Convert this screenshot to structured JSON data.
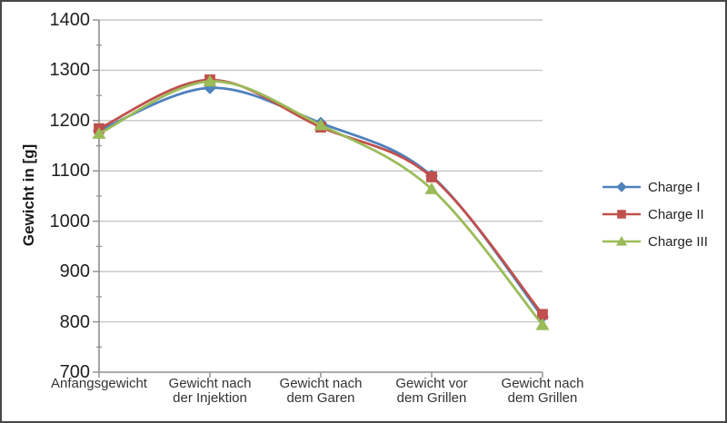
{
  "chart_data": {
    "type": "line",
    "title": "",
    "xlabel": "",
    "ylabel": "Gewicht in [g]",
    "categories": [
      "Anfangsgewicht",
      "Gewicht nach der Injektion",
      "Gewicht nach dem Garen",
      "Gewicht vor dem Grillen",
      "Gewicht nach dem Grillen"
    ],
    "x_tick_lines": [
      [
        "Anfangsgewicht"
      ],
      [
        "Gewicht nach",
        "der Injektion"
      ],
      [
        "Gewicht nach",
        "dem Garen"
      ],
      [
        "Gewicht vor",
        "dem Grillen"
      ],
      [
        "Gewicht nach",
        "dem Grillen"
      ]
    ],
    "series": [
      {
        "name": "Charge I",
        "marker": "diamond",
        "color": "#4F81BD",
        "values": [
          1180,
          1265,
          1195,
          1090,
          810
        ]
      },
      {
        "name": "Charge II",
        "marker": "square",
        "color": "#C0504D",
        "values": [
          1184,
          1281,
          1187,
          1088,
          815
        ]
      },
      {
        "name": "Charge III",
        "marker": "triangle",
        "color": "#9BBB59",
        "values": [
          1174,
          1278,
          1191,
          1064,
          794
        ]
      }
    ],
    "ylim": [
      700,
      1400
    ],
    "y_ticks": [
      1400,
      1300,
      1200,
      1100,
      1000,
      900,
      800,
      700
    ],
    "y_minor_ticks": [
      1350,
      1250,
      1150,
      1050,
      950,
      850,
      750
    ],
    "grid": true,
    "smooth_lines": true,
    "legend_position": "right",
    "colors": {
      "grid": "#c6c6c6",
      "axis": "#8f8f8f",
      "tick_text": "#1f1f1f",
      "label_text": "#333333"
    }
  }
}
